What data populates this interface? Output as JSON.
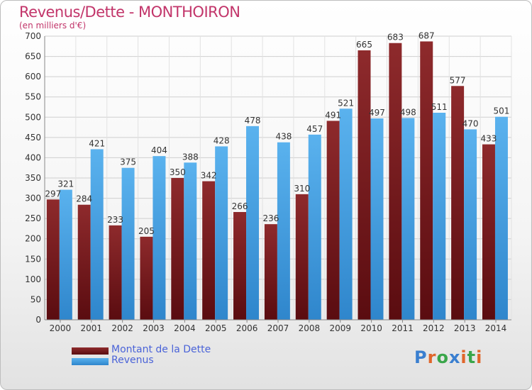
{
  "header": {
    "title": "Revenus/Dette - MONTHOIRON",
    "subtitle": "(en milliers d'€)"
  },
  "colors": {
    "title": "#c2356a",
    "dette": "#7a1f24",
    "revenus": "#4aa6e6",
    "legend_text": "#4a63d8"
  },
  "legend": {
    "items": [
      {
        "label": "Montant de la Dette",
        "color": "#7a1f24"
      },
      {
        "label": "Revenus",
        "color": "#4aa6e6"
      }
    ],
    "placement": "bottom-left"
  },
  "logo": {
    "text": "Proxiti"
  },
  "chart_data": {
    "type": "bar",
    "categories": [
      "2000",
      "2001",
      "2002",
      "2003",
      "2004",
      "2005",
      "2006",
      "2007",
      "2008",
      "2009",
      "2010",
      "2011",
      "2012",
      "2013",
      "2014"
    ],
    "series": [
      {
        "name": "Montant de la Dette",
        "values": [
          297,
          284,
          233,
          205,
          350,
          342,
          266,
          236,
          310,
          491,
          665,
          683,
          687,
          577,
          433
        ]
      },
      {
        "name": "Revenus",
        "values": [
          321,
          421,
          375,
          404,
          388,
          428,
          478,
          438,
          457,
          521,
          497,
          498,
          511,
          470,
          501
        ]
      }
    ],
    "title": "Revenus/Dette - MONTHOIRON",
    "subtitle": "(en milliers d'€)",
    "ylim": [
      0,
      700
    ],
    "yticks": [
      0,
      50,
      100,
      150,
      200,
      250,
      300,
      350,
      400,
      450,
      500,
      550,
      600,
      650,
      700
    ],
    "grid": true,
    "legend": "bottom-left"
  }
}
